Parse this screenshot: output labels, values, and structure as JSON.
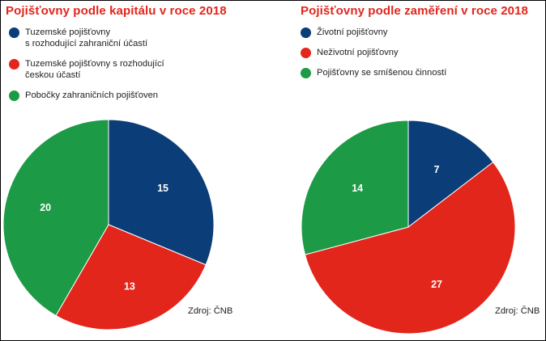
{
  "chart_data": [
    {
      "type": "pie",
      "title": "Pojišťovny podle kapitálu v roce 2018",
      "categories": [
        "Tuzemské pojišťovny\ns rozhodující zahraniční účastí",
        "Tuzemské pojišťovny s rozhodující\nčeskou účastí",
        "Pobočky zahraničních pojišťoven"
      ],
      "values": [
        15,
        13,
        20
      ],
      "data_labels": [
        "15",
        "13",
        "20"
      ],
      "colors": [
        "#0b3d78",
        "#e2261c",
        "#1d9a45"
      ],
      "legend": "top-left",
      "source": "Zdroj: ČNB"
    },
    {
      "type": "pie",
      "title": "Pojišťovny podle zaměření v roce 2018",
      "categories": [
        "Životní pojišťovny",
        "Neživotní pojišťovny",
        "Pojišťovny se smíšenou činností"
      ],
      "values": [
        7,
        27,
        14
      ],
      "data_labels": [
        "7",
        "27",
        "14"
      ],
      "colors": [
        "#0b3d78",
        "#e2261c",
        "#1d9a45"
      ],
      "legend": "top-left",
      "source": "Zdroj: ČNB"
    }
  ]
}
